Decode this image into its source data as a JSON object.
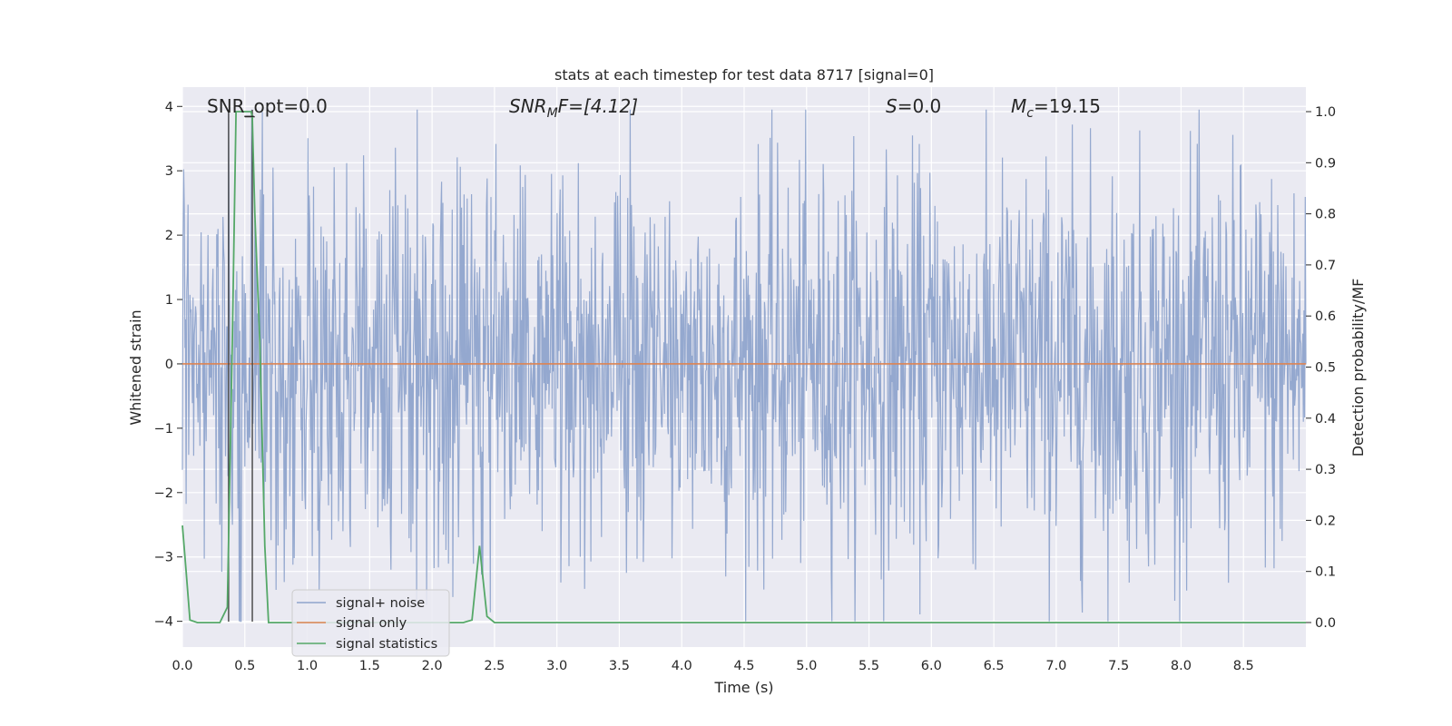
{
  "chart_data": {
    "type": "line",
    "title": "stats at each timestep for test data 8717 [signal=0]",
    "xlabel": "Time (s)",
    "ylabel": "Whitened strain",
    "y2label": "Detection probability/MF",
    "xlim": [
      0,
      9.0
    ],
    "ylim": [
      -4.4,
      4.3
    ],
    "y2lim": [
      -0.048,
      1.048
    ],
    "xticks": [
      "0.0",
      "0.5",
      "1.0",
      "1.5",
      "2.0",
      "2.5",
      "3.0",
      "3.5",
      "4.0",
      "4.5",
      "5.0",
      "5.5",
      "6.0",
      "6.5",
      "7.0",
      "7.5",
      "8.0",
      "8.5"
    ],
    "yticks": [
      "−4",
      "−3",
      "−2",
      "−1",
      "0",
      "1",
      "2",
      "3",
      "4"
    ],
    "y2ticks": [
      "0.0",
      "0.1",
      "0.2",
      "0.3",
      "0.4",
      "0.5",
      "0.6",
      "0.7",
      "0.8",
      "0.9",
      "1.0"
    ],
    "grid": true,
    "legend_position": "lower-left",
    "annotations": {
      "snr_opt": "SNR_opt=0.0",
      "snr_mf_main": "SNR",
      "snr_mf_sub": "M",
      "snr_mf_rest": "F=[4.12]",
      "s_main": "S",
      "s_rest": "=0.0",
      "mc_main": "M",
      "mc_sub": "c",
      "mc_rest": "=19.15"
    },
    "markers": {
      "vertical_lines_x": [
        0.37,
        0.56
      ]
    },
    "series": [
      {
        "name": "signal+ noise",
        "color": "#8fa4cc",
        "envelope": {
          "typical_abs": 1.6,
          "max": 3.95,
          "min": -4.0,
          "n_points": 1800,
          "seed": 8717
        }
      },
      {
        "name": "signal only",
        "color": "#dd8452",
        "x": [
          0,
          9.0
        ],
        "y": [
          0,
          0
        ]
      },
      {
        "name": "signal statistics",
        "color": "#55a868",
        "axis": "right",
        "x": [
          0.0,
          0.03,
          0.06,
          0.12,
          0.18,
          0.24,
          0.3,
          0.36,
          0.4,
          0.43,
          0.45,
          0.5,
          0.55,
          0.56,
          0.58,
          0.62,
          0.66,
          0.69,
          0.72,
          1.0,
          1.5,
          2.0,
          2.25,
          2.32,
          2.38,
          2.44,
          2.5,
          2.6,
          3.0,
          4.0,
          5.0,
          6.0,
          7.0,
          8.0,
          9.0
        ],
        "y": [
          0.19,
          0.1,
          0.005,
          0.0,
          0.0,
          0.0,
          0.0,
          0.03,
          0.55,
          1.0,
          1.0,
          1.0,
          1.0,
          0.99,
          0.8,
          0.55,
          0.15,
          0.0,
          0.0,
          0.0,
          0.0,
          0.0,
          0.0,
          0.005,
          0.15,
          0.012,
          0.0,
          0.0,
          0.0,
          0.0,
          0.0,
          0.0,
          0.0,
          0.0,
          0.0
        ]
      }
    ]
  }
}
